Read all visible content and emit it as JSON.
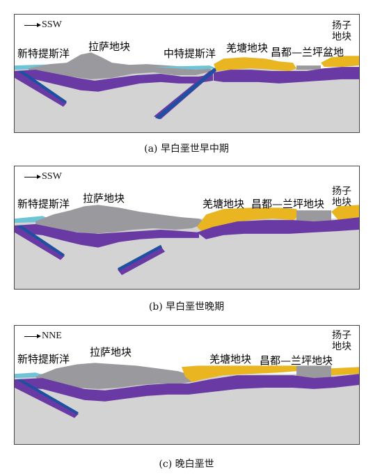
{
  "panels": [
    {
      "direction": "SSW",
      "labels": {
        "neo_tethys": "新特提斯洋",
        "lhasa": "拉萨地块",
        "meso_tethys": "中特提斯洋",
        "qiangtang": "羌塘地块",
        "changdu": "昌都—兰坪盆地",
        "yangtze_line1": "扬子",
        "yangtze_line2": "地块"
      },
      "caption": "(a) 早白垩世早中期"
    },
    {
      "direction": "SSW",
      "labels": {
        "neo_tethys": "新特提斯洋",
        "lhasa": "拉萨地块",
        "qiangtang": "羌塘地块",
        "changdu": "昌都—兰坪地块",
        "yangtze_line1": "扬子",
        "yangtze_line2": "地块"
      },
      "caption": "(b) 早白垩世晚期"
    },
    {
      "direction": "NNE",
      "labels": {
        "neo_tethys": "新特提斯洋",
        "lhasa": "拉萨地块",
        "qiangtang": "羌塘地块",
        "changdu": "昌都—兰坪地块",
        "yangtze_line1": "扬子",
        "yangtze_line2": "地块"
      },
      "caption": "(c) 晚白垩世"
    }
  ],
  "colors": {
    "mantle": "#d3d3d3",
    "sky": "#ffffff",
    "lhasa_crust": "#9a9a9e",
    "purple_lithosphere": "#6a3aa4",
    "qiangtang_yellow": "#e9b520",
    "ocean_water": "#6ec3d6",
    "slab_blue": "#1e4fa0"
  }
}
